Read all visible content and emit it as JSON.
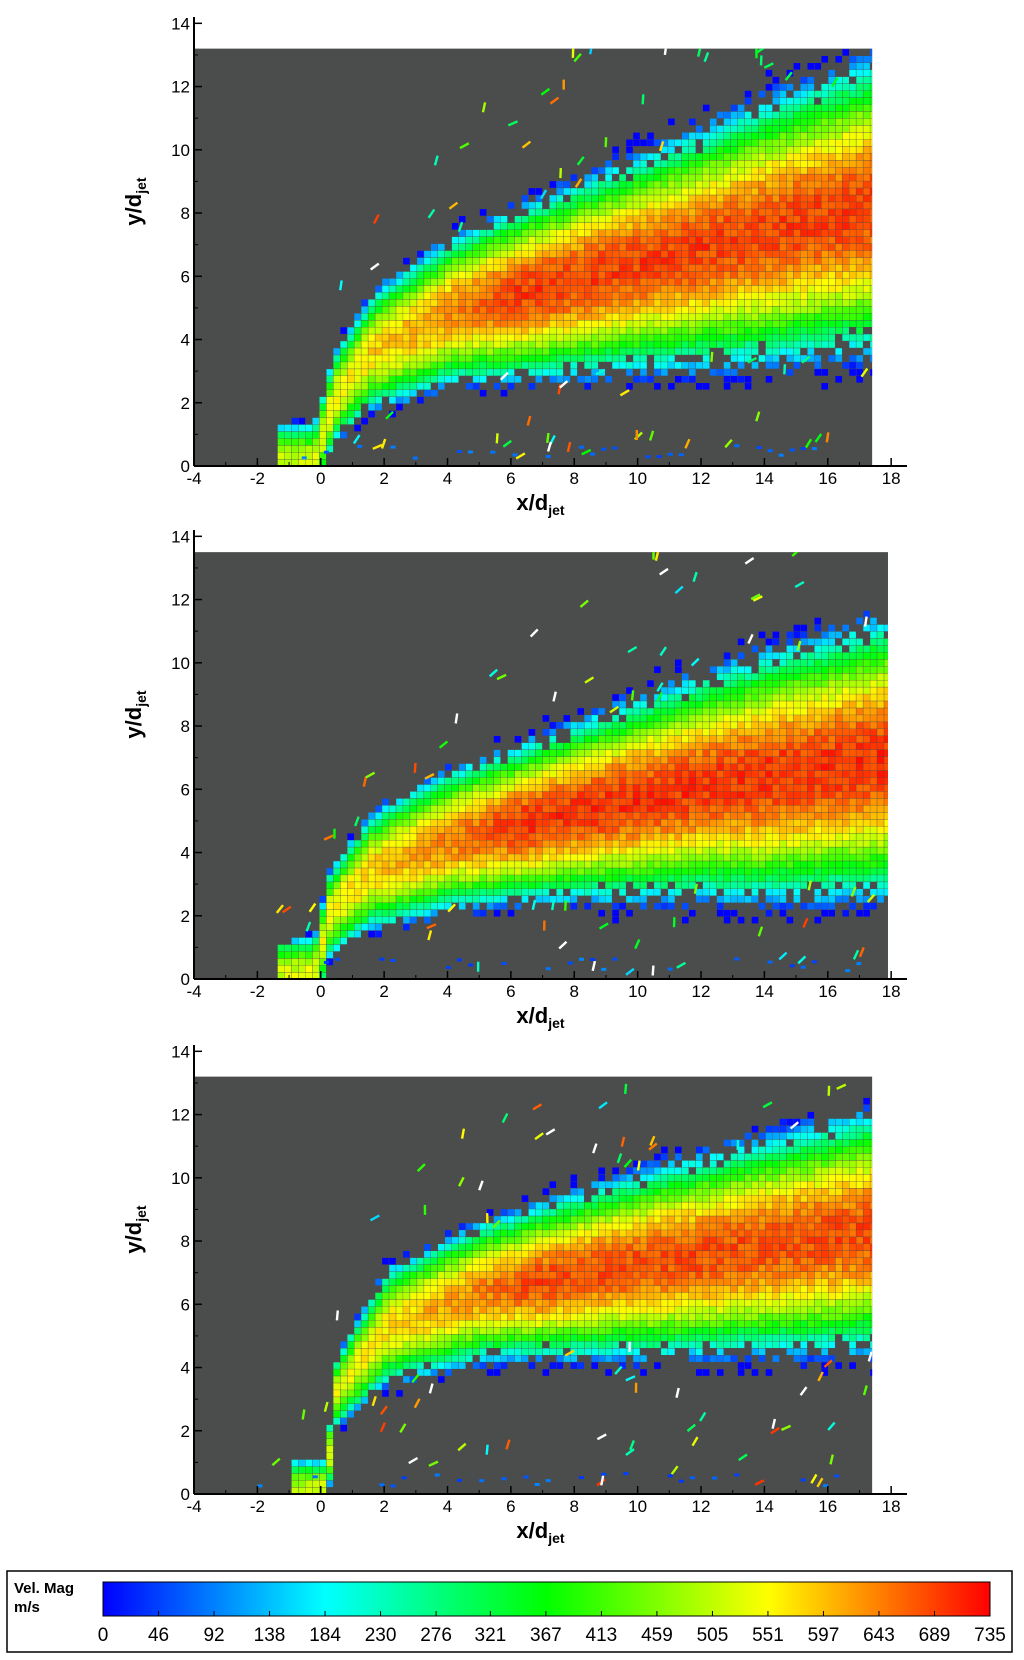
{
  "chart_data": [
    {
      "type": "heatmap",
      "title": "",
      "xlabel_main": "x/d",
      "xlabel_sub": "jet",
      "ylabel_main": "y/d",
      "ylabel_sub": "jet",
      "xlim": [
        -4,
        18.5
      ],
      "ylim": [
        0,
        14.2
      ],
      "data_xlim": [
        -4,
        17.4
      ],
      "data_ylim": [
        0,
        13.2
      ],
      "xticks": [
        -4,
        -2,
        0,
        2,
        4,
        6,
        8,
        10,
        12,
        14,
        16,
        18
      ],
      "yticks": [
        0,
        2,
        4,
        6,
        8,
        10,
        12,
        14
      ],
      "background_color": "#4b4d4c",
      "jet": {
        "centerline": [
          [
            -0.3,
            0
          ],
          [
            0.3,
            2
          ],
          [
            1.5,
            3.5
          ],
          [
            4,
            4.8
          ],
          [
            8,
            5.8
          ],
          [
            12,
            6.8
          ],
          [
            16,
            7.8
          ],
          [
            17.4,
            8.1
          ]
        ],
        "half_width": [
          [
            -0.3,
            1.0
          ],
          [
            2,
            1.6
          ],
          [
            6,
            2.2
          ],
          [
            10,
            2.8
          ],
          [
            14,
            3.4
          ],
          [
            17.4,
            3.8
          ]
        ],
        "peak_velocity": 690
      }
    },
    {
      "type": "heatmap",
      "title": "",
      "xlabel_main": "x/d",
      "xlabel_sub": "jet",
      "ylabel_main": "y/d",
      "ylabel_sub": "jet",
      "xlim": [
        -4,
        18.5
      ],
      "ylim": [
        0,
        14.2
      ],
      "data_xlim": [
        -4,
        17.9
      ],
      "data_ylim": [
        0,
        13.5
      ],
      "xticks": [
        -4,
        -2,
        0,
        2,
        4,
        6,
        8,
        10,
        12,
        14,
        16,
        18
      ],
      "yticks": [
        0,
        2,
        4,
        6,
        8,
        10,
        12,
        14
      ],
      "background_color": "#4b4d4c",
      "jet": {
        "centerline": [
          [
            -0.3,
            0
          ],
          [
            0.2,
            2
          ],
          [
            1.5,
            3.3
          ],
          [
            4,
            4.3
          ],
          [
            8,
            5.2
          ],
          [
            12,
            6.0
          ],
          [
            16,
            6.6
          ],
          [
            17.9,
            6.9
          ]
        ],
        "half_width": [
          [
            -0.3,
            1.0
          ],
          [
            2,
            1.6
          ],
          [
            6,
            2.0
          ],
          [
            10,
            2.6
          ],
          [
            14,
            3.2
          ],
          [
            17.9,
            3.6
          ]
        ],
        "peak_velocity": 700
      }
    },
    {
      "type": "heatmap",
      "title": "",
      "xlabel_main": "x/d",
      "xlabel_sub": "jet",
      "ylabel_main": "y/d",
      "ylabel_sub": "jet",
      "xlim": [
        -4,
        18.5
      ],
      "ylim": [
        0,
        14.2
      ],
      "data_xlim": [
        -4,
        17.4
      ],
      "data_ylim": [
        0,
        13.2
      ],
      "xticks": [
        -4,
        -2,
        0,
        2,
        4,
        6,
        8,
        10,
        12,
        14,
        16,
        18
      ],
      "yticks": [
        0,
        2,
        4,
        6,
        8,
        10,
        12,
        14
      ],
      "background_color": "#4b4d4c",
      "jet": {
        "centerline": [
          [
            0.1,
            0
          ],
          [
            0.3,
            3
          ],
          [
            2,
            5.2
          ],
          [
            5,
            6.3
          ],
          [
            9,
            7.0
          ],
          [
            13,
            7.6
          ],
          [
            17.4,
            8.2
          ]
        ],
        "half_width": [
          [
            0.1,
            0.8
          ],
          [
            2,
            1.5
          ],
          [
            6,
            1.9
          ],
          [
            10,
            2.4
          ],
          [
            14,
            2.8
          ],
          [
            17.4,
            3.1
          ]
        ],
        "peak_velocity": 680
      }
    }
  ],
  "colorbar": {
    "title_line1": "Vel. Mag",
    "title_line2": "m/s",
    "min": 0,
    "max": 735,
    "tick_labels": [
      "0",
      "46",
      "92",
      "138",
      "184",
      "230",
      "276",
      "321",
      "367",
      "413",
      "459",
      "505",
      "551",
      "597",
      "643",
      "689",
      "735"
    ],
    "colors": [
      "#0000ff",
      "#00ffff",
      "#00ff00",
      "#ffff00",
      "#ff0000"
    ]
  }
}
